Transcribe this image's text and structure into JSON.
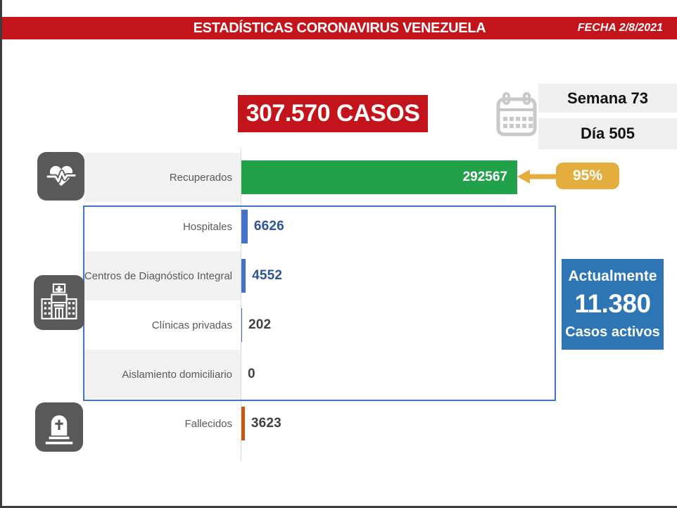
{
  "header": {
    "title": "ESTADÍSTICAS CORONAVIRUS VENEZUELA",
    "date_label": "FECHA 2/8/2021"
  },
  "totals": {
    "cases_label": "307.570 CASOS",
    "week_label": "Semana 73",
    "day_label": "Día 505"
  },
  "recovered_badge": {
    "percent": "95%"
  },
  "active_box": {
    "line1": "Actualmente",
    "value": "11.380",
    "line2": "Casos activos"
  },
  "chart_data": {
    "type": "bar",
    "orientation": "horizontal",
    "title": "307.570 CASOS",
    "categories": [
      "Recuperados",
      "Hospitales",
      "Centros de Diagnóstico Integral",
      "Clínicas privadas",
      "Aislamiento domiciliario",
      "Fallecidos"
    ],
    "values": [
      292567,
      6626,
      4552,
      202,
      0,
      3623
    ],
    "value_labels": [
      "292567",
      "6626",
      "4552",
      "202",
      "0",
      "3623"
    ],
    "bar_colors": [
      "#22A14B",
      "#4472C4",
      "#4472C4",
      "#4472C4",
      "#4472C4",
      "#C55A11"
    ],
    "value_text_colors": [
      "#FFFFFF",
      "#2E5597",
      "#2E5597",
      "#404040",
      "#404040",
      "#404040"
    ],
    "xlim": [
      0,
      300000
    ],
    "grid": false,
    "legend": false,
    "recovered_percent_annotation": "95%",
    "active_cases_annotation": "11.380"
  },
  "icons": {
    "heartbeat": "heartbeat-heart-icon",
    "hospital": "hospital-building-icon",
    "tombstone": "tombstone-icon",
    "calendar": "calendar-icon",
    "arrow": "arrow-left-icon"
  },
  "colors": {
    "red": "#C3131B",
    "green": "#22A14B",
    "bar-blue": "#4472C4",
    "value-blue": "#2E5597",
    "orange": "#C55A11",
    "gold": "#E3AE3D",
    "active-blue": "#2E75B6",
    "icon-gray": "#595959",
    "band-gray": "#F1F1F1",
    "box-gray": "#EFEFEF",
    "calendar-gray": "#C9C9C9",
    "text-dark": "#404040",
    "label-gray": "#595959",
    "axis-gray": "#D9D9D9",
    "frame-dark": "#3B3B3B"
  }
}
